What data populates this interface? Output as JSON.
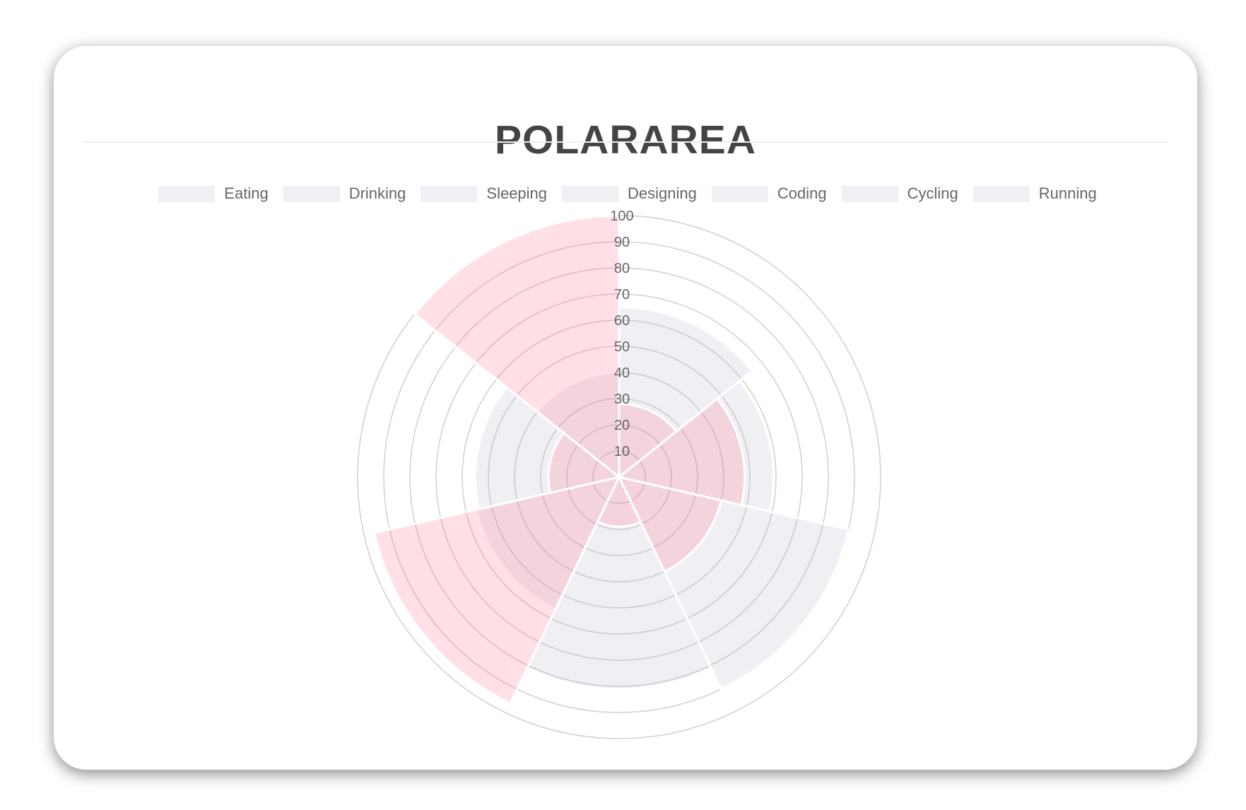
{
  "title": "POLARAREA",
  "legend": [
    "Eating",
    "Drinking",
    "Sleeping",
    "Designing",
    "Coding",
    "Cycling",
    "Running"
  ],
  "chart_data": {
    "type": "polarArea",
    "title": "POLARAREA",
    "categories": [
      "Eating",
      "Drinking",
      "Sleeping",
      "Designing",
      "Coding",
      "Cycling",
      "Running"
    ],
    "series": [
      {
        "values": [
          65,
          59,
          90,
          81,
          56,
          55,
          40
        ],
        "color": "rgba(179,181,198,0.2)"
      },
      {
        "values": [
          28,
          48,
          40,
          19,
          96,
          27,
          100
        ],
        "color": "rgba(255,99,132,0.2)"
      }
    ],
    "r_ticks": [
      "10",
      "20",
      "30",
      "40",
      "50",
      "60",
      "70",
      "80",
      "90",
      "100"
    ],
    "rlim": [
      0,
      100
    ],
    "grid": true,
    "legend_position": "top"
  }
}
